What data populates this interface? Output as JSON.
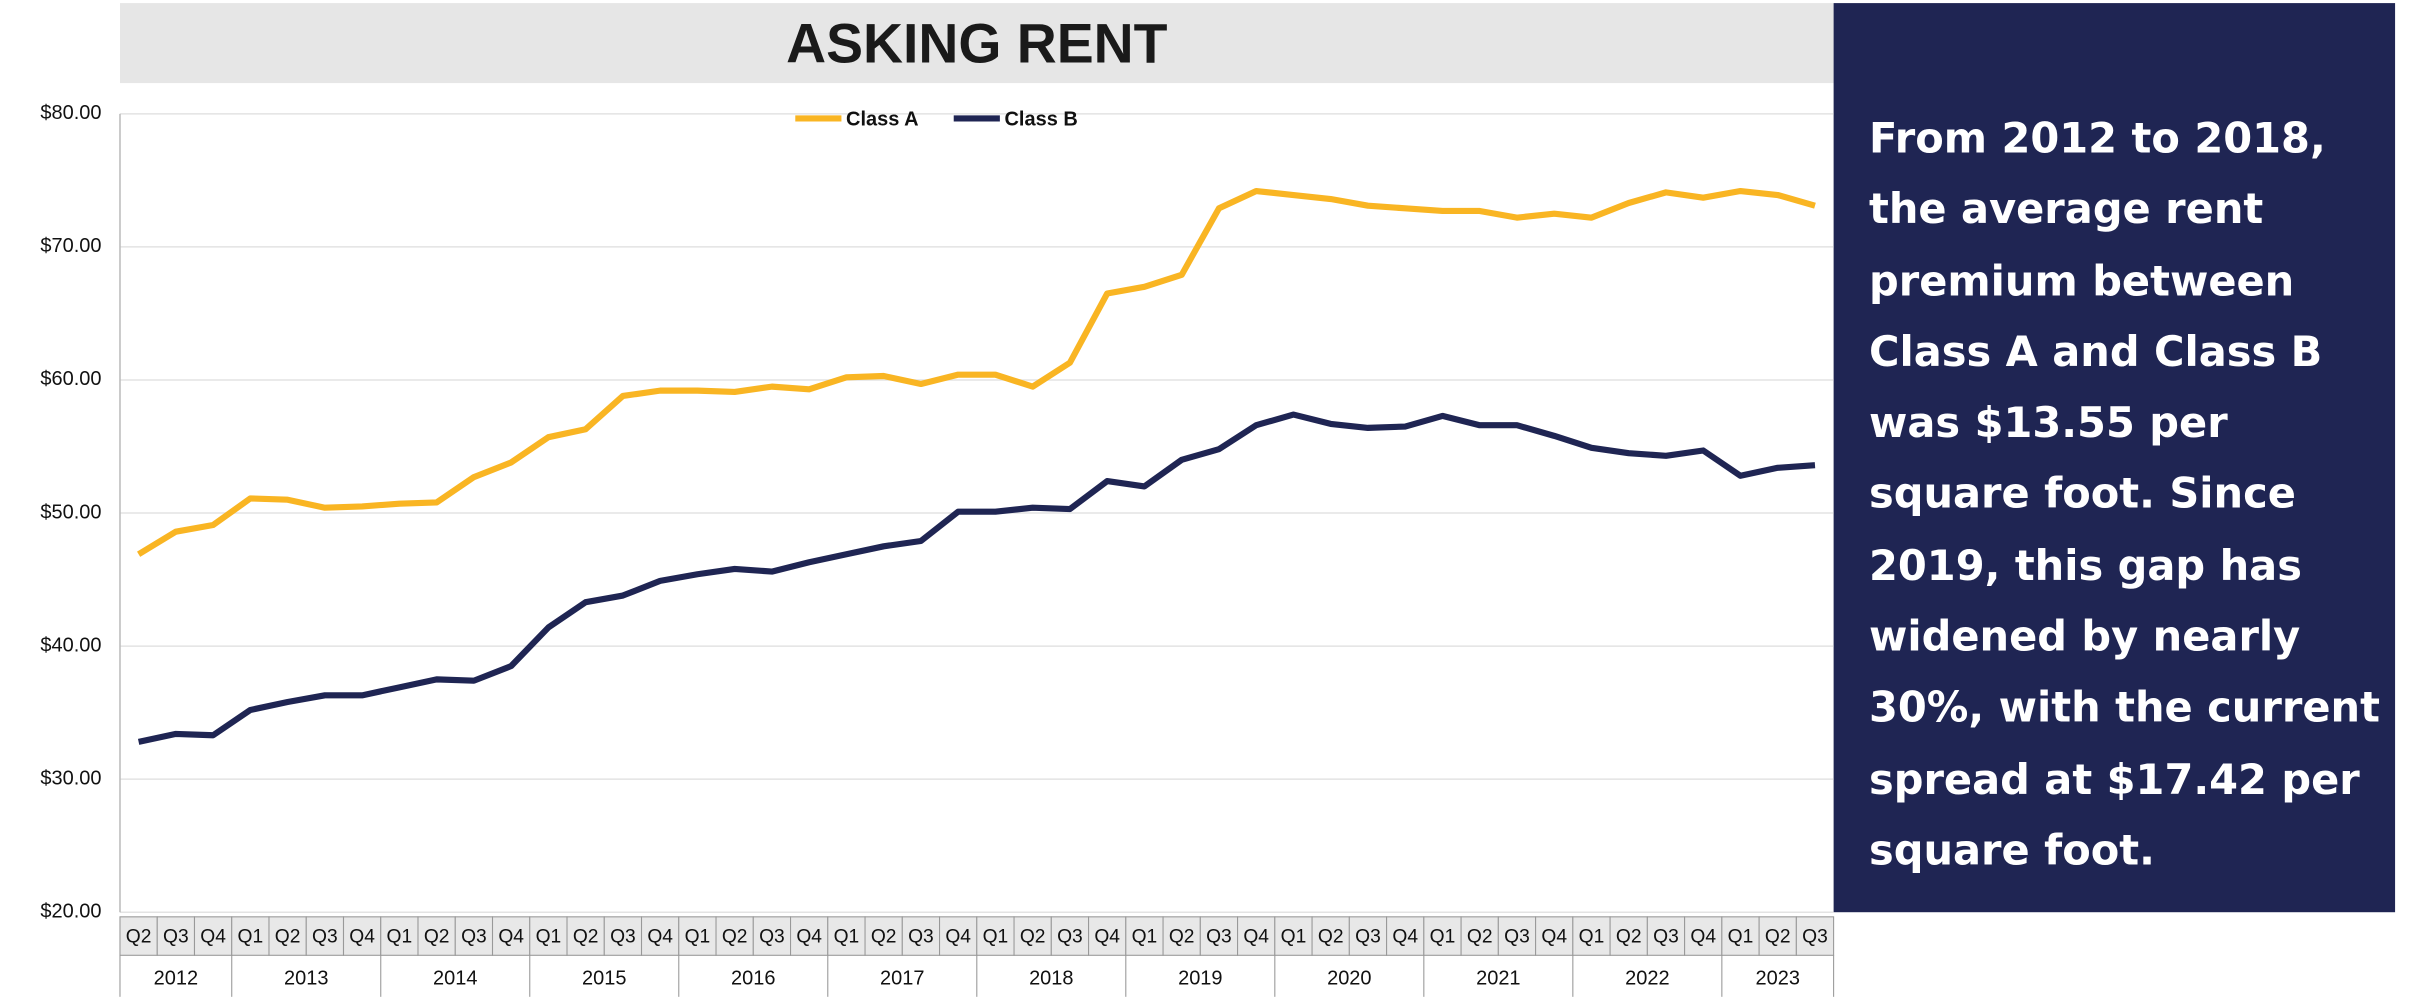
{
  "chart_data": {
    "type": "line",
    "title": "ASKING RENT",
    "categories": [
      "Q2",
      "Q3",
      "Q4",
      "Q1",
      "Q2",
      "Q3",
      "Q4",
      "Q1",
      "Q2",
      "Q3",
      "Q4",
      "Q1",
      "Q2",
      "Q3",
      "Q4",
      "Q1",
      "Q2",
      "Q3",
      "Q4",
      "Q1",
      "Q2",
      "Q3",
      "Q4",
      "Q1",
      "Q2",
      "Q3",
      "Q4",
      "Q1",
      "Q2",
      "Q3",
      "Q4",
      "Q1",
      "Q2",
      "Q3",
      "Q4",
      "Q1",
      "Q2",
      "Q3",
      "Q4",
      "Q1",
      "Q2",
      "Q3",
      "Q4",
      "Q1",
      "Q2",
      "Q3"
    ],
    "years": [
      "2012",
      "2013",
      "2014",
      "2015",
      "2016",
      "2017",
      "2018",
      "2019",
      "2020",
      "2021",
      "2022",
      "2023"
    ],
    "series": [
      {
        "name": "Class A",
        "color": "#f9b523",
        "values": [
          46.9,
          48.6,
          49.1,
          51.1,
          51.0,
          50.4,
          50.5,
          50.7,
          50.8,
          52.7,
          53.8,
          55.7,
          56.3,
          58.8,
          59.2,
          59.2,
          59.1,
          59.5,
          59.3,
          60.2,
          60.3,
          59.7,
          60.4,
          60.4,
          59.5,
          61.3,
          66.5,
          67.0,
          67.9,
          72.9,
          74.2,
          73.9,
          73.6,
          73.1,
          72.9,
          72.7,
          72.7,
          72.2,
          72.5,
          72.2,
          73.3,
          74.1,
          73.7,
          74.2,
          73.9,
          73.1
        ]
      },
      {
        "name": "Class B",
        "color": "#1f2553",
        "values": [
          32.8,
          33.4,
          33.3,
          35.2,
          35.8,
          36.3,
          36.3,
          36.9,
          37.5,
          37.4,
          38.5,
          41.4,
          43.3,
          43.8,
          44.9,
          45.4,
          45.8,
          45.6,
          46.3,
          46.9,
          47.5,
          47.9,
          50.1,
          50.1,
          50.4,
          50.3,
          52.4,
          52.0,
          54.0,
          54.8,
          56.6,
          57.4,
          56.7,
          56.4,
          56.5,
          57.3,
          56.6,
          56.6,
          55.8,
          54.9,
          54.5,
          54.3,
          54.7,
          52.8,
          53.4,
          53.6
        ]
      }
    ],
    "ylim": [
      20,
      80
    ],
    "yticks": [
      {
        "value": 20,
        "label": "$20.00"
      },
      {
        "value": 30,
        "label": "$30.00"
      },
      {
        "value": 40,
        "label": "$40.00"
      },
      {
        "value": 50,
        "label": "$50.00"
      },
      {
        "value": 60,
        "label": "$60.00"
      },
      {
        "value": 70,
        "label": "$70.00"
      },
      {
        "value": 80,
        "label": "$80.00"
      }
    ],
    "grid": true,
    "legend": "top",
    "note": "From 2012 to 2018, the average rent premium between Class A and Class B was $13.55 per square foot. Since 2019, this gap has widened by nearly 30%, with the current spread at $17.42 per square foot.",
    "note_background": "#1f2553"
  }
}
